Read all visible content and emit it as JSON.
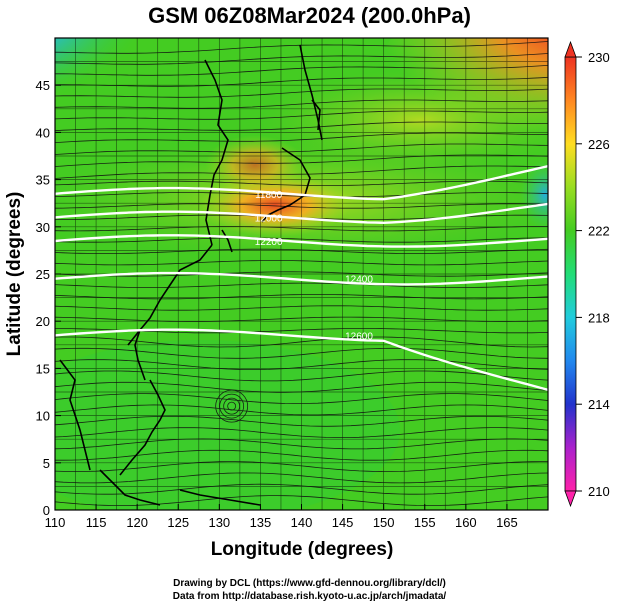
{
  "title": "GSM 06Z08Mar2024 (200.0hPa)",
  "x_axis": {
    "label": "Longitude (degrees)",
    "ticks": [
      "110",
      "115",
      "120",
      "125",
      "130",
      "135",
      "140",
      "145",
      "150",
      "155",
      "160",
      "165"
    ],
    "range": [
      110,
      170
    ]
  },
  "y_axis": {
    "label": "Latitude  (degrees)",
    "ticks": [
      "0",
      "5",
      "10",
      "15",
      "20",
      "25",
      "30",
      "35",
      "40",
      "45"
    ],
    "range": [
      0,
      50
    ]
  },
  "colorbar": {
    "labels": [
      "230",
      "226",
      "222",
      "218",
      "214",
      "210"
    ],
    "range": [
      210,
      230
    ],
    "colors": [
      "#ff22aa",
      "#8822cc",
      "#2233cc",
      "#22aaee",
      "#22dd88",
      "#33cc22",
      "#aadd22",
      "#ffcc22",
      "#ff7722",
      "#ee3322"
    ]
  },
  "contours": [
    {
      "label": "12600",
      "lat": 18.5
    },
    {
      "label": "12400",
      "lat": 24.5
    },
    {
      "label": "12200",
      "lat": 28.5
    },
    {
      "label": "12000",
      "lat": 31.0
    },
    {
      "label": "11800",
      "lat": 33.5
    }
  ],
  "credits": [
    "Drawing by DCL (https://www.gfd-dennou.org/library/dcl/)",
    "Data from http://database.rish.kyoto-u.ac.jp/arch/jmadata/"
  ]
}
